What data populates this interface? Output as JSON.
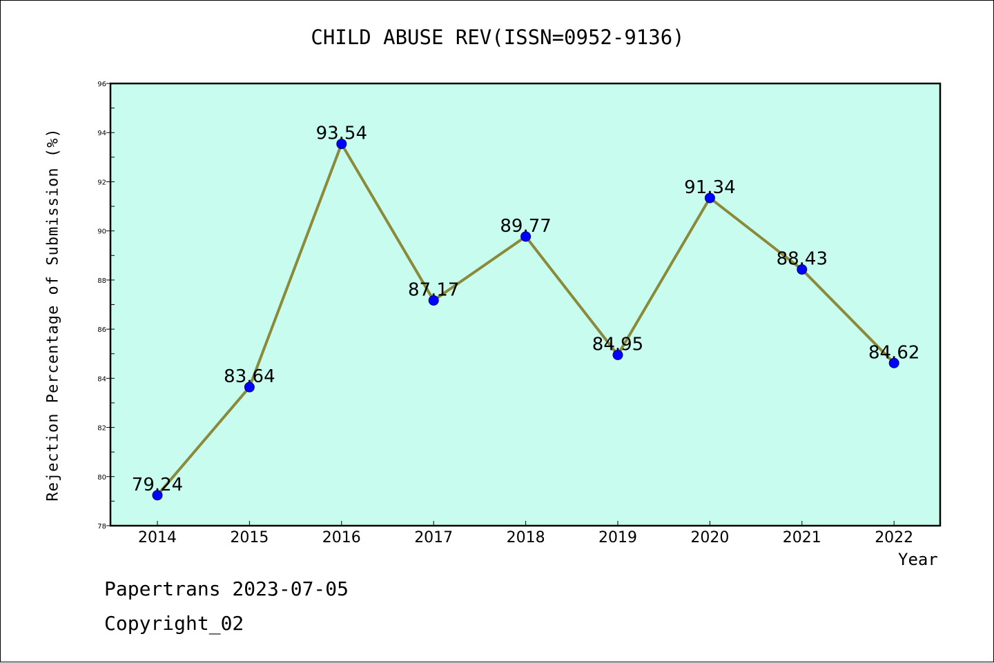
{
  "chart_data": {
    "type": "line",
    "title": "CHILD ABUSE REV(ISSN=0952-9136)",
    "xlabel": "Year",
    "ylabel": "Rejection Percentage of Submission (%)",
    "categories": [
      "2014",
      "2015",
      "2016",
      "2017",
      "2018",
      "2019",
      "2020",
      "2021",
      "2022"
    ],
    "series": [
      {
        "values": [
          79.24,
          83.64,
          93.54,
          87.17,
          89.77,
          84.95,
          91.34,
          88.43,
          84.62
        ],
        "labels": [
          "79.24",
          "83.64",
          "93.54",
          "87.17",
          "89.77",
          "84.95",
          "91.34",
          "88.43",
          "84.62"
        ]
      }
    ],
    "ylim": [
      78,
      96
    ],
    "yticks": [
      78,
      80,
      82,
      84,
      86,
      88,
      90,
      92,
      94,
      96
    ],
    "grid": false,
    "colors": {
      "plot_background": "#c8fcee",
      "line": "#8b8a3a",
      "marker": "#0000ff"
    }
  },
  "footer": {
    "line1": "Papertrans 2023-07-05",
    "line2": "Copyright_02"
  }
}
